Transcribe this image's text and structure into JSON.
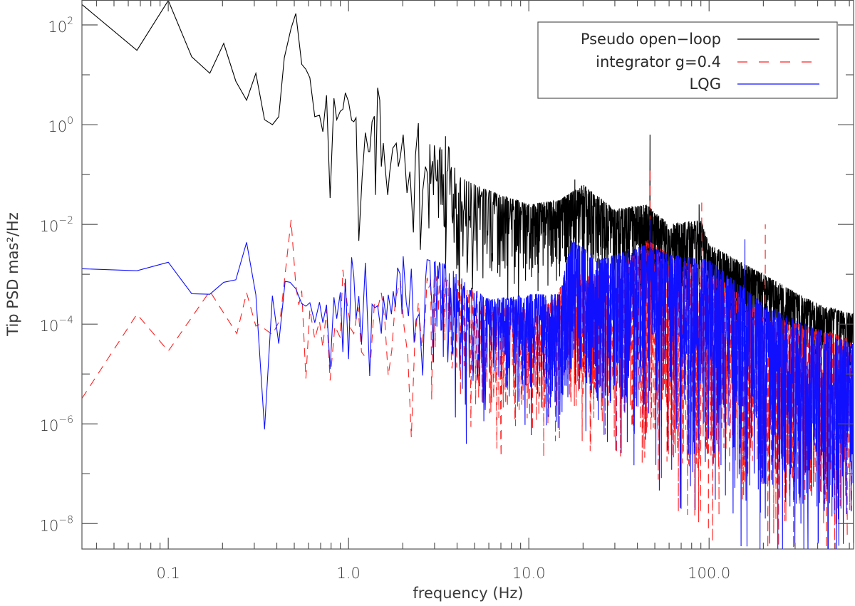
{
  "chart_data": {
    "type": "line",
    "title": "",
    "xlabel": "frequency (Hz)",
    "ylabel": "Tip PSD mas²/Hz",
    "xscale": "log",
    "yscale": "log",
    "xlim": [
      0.0332,
      633
    ],
    "ylim_log10": [
      -8.51,
      2.5
    ],
    "grid": false,
    "x_ticks": [
      {
        "value": 0.1,
        "label": "0.1"
      },
      {
        "value": 1.0,
        "label": "1.0"
      },
      {
        "value": 10.0,
        "label": "10.0"
      },
      {
        "value": 100.0,
        "label": "100.0"
      }
    ],
    "y_ticks": [
      {
        "exp": 2,
        "base": "10",
        "exp_label": "2"
      },
      {
        "exp": 0,
        "base": "10",
        "exp_label": "0"
      },
      {
        "exp": -2,
        "base": "10",
        "exp_label": "−2"
      },
      {
        "exp": -4,
        "base": "10",
        "exp_label": "−4"
      },
      {
        "exp": -6,
        "base": "10",
        "exp_label": "−6"
      },
      {
        "exp": -8,
        "base": "10",
        "exp_label": "−8"
      }
    ],
    "legend": {
      "position": "top-right",
      "entries": [
        {
          "label": "Pseudo open−loop",
          "color": "#000000",
          "style": "solid"
        },
        {
          "label": "integrator g=0.4",
          "color": "#ff2020",
          "style": "dashed"
        },
        {
          "label": "LQG",
          "color": "#1010ff",
          "style": "solid"
        }
      ]
    },
    "series": [
      {
        "name": "Pseudo open-loop",
        "color": "#000000",
        "style": "solid",
        "seed": 11,
        "value_format": "[frequency_Hz, log10_PSD]",
        "points": [
          [
            0.0332,
            2.41
          ],
          [
            0.067,
            1.49
          ],
          [
            0.1,
            2.49
          ],
          [
            0.135,
            1.36
          ],
          [
            0.17,
            1.03
          ],
          [
            0.203,
            1.63
          ],
          [
            0.237,
            0.87
          ],
          [
            0.272,
            0.49
          ],
          [
            0.306,
            1.03
          ],
          [
            0.342,
            0.1
          ],
          [
            0.378,
            0.0
          ],
          [
            0.41,
            0.16
          ],
          [
            0.44,
            1.34
          ],
          [
            0.48,
            1.93
          ],
          [
            0.51,
            2.23
          ],
          [
            0.55,
            1.21
          ],
          [
            0.58,
            1.11
          ],
          [
            0.61,
            0.94
          ],
          [
            0.65,
            0.16
          ],
          [
            0.69,
            0.19
          ],
          [
            0.72,
            -0.14
          ],
          [
            0.755,
            0.59
          ],
          [
            0.79,
            -1.47
          ],
          [
            0.83,
            0.53
          ],
          [
            0.86,
            0.1
          ],
          [
            0.9,
            0.27
          ],
          [
            0.93,
            0.31
          ],
          [
            0.96,
            0.64
          ],
          [
            1.0,
            0.46
          ],
          [
            1.04,
            0.09
          ],
          [
            1.07,
            0.06
          ],
          [
            1.1,
            0.14
          ],
          [
            1.14,
            -2.33
          ],
          [
            1.19,
            -1.04
          ],
          [
            1.24,
            -0.16
          ],
          [
            1.29,
            -0.54
          ],
          [
            1.31,
            -0.54
          ],
          [
            1.35,
            0.06
          ],
          [
            1.39,
            0.17
          ],
          [
            1.41,
            -1.41
          ],
          [
            1.45,
            0.74
          ],
          [
            1.49,
            0.49
          ],
          [
            1.52,
            -0.84
          ],
          [
            1.56,
            -0.37
          ],
          [
            1.6,
            -0.9
          ],
          [
            1.65,
            -1.41
          ],
          [
            1.69,
            -0.97
          ],
          [
            1.76,
            -0.47
          ],
          [
            1.84,
            -0.37
          ],
          [
            1.89,
            -0.84
          ],
          [
            1.94,
            -0.63
          ],
          [
            2.01,
            -0.2
          ],
          [
            2.11,
            -1.37
          ],
          [
            2.19,
            -0.94
          ],
          [
            2.29,
            -2.16
          ],
          [
            2.35,
            -0.61
          ],
          [
            2.44,
            0.03
          ],
          [
            2.5,
            -2.51
          ],
          [
            2.58,
            -1.33
          ],
          [
            2.67,
            -0.84
          ]
        ],
        "envelope_format": "[frequency_Hz, upper_log10, lower_log10]",
        "envelope": [
          [
            2.7,
            -0.4,
            -2.8
          ],
          [
            3.5,
            -0.3,
            -2.8
          ],
          [
            4,
            -1.0,
            -3.2
          ],
          [
            5,
            -1.2,
            -3.0
          ],
          [
            7,
            -1.4,
            -3.0
          ],
          [
            10,
            -1.6,
            -3.0
          ],
          [
            15,
            -1.5,
            -2.8
          ],
          [
            20,
            -1.2,
            -2.7
          ],
          [
            30,
            -1.7,
            -2.9
          ],
          [
            45,
            -1.6,
            -3.2
          ],
          [
            60,
            -2.0,
            -3.6
          ],
          [
            90,
            -1.9,
            -3.6
          ],
          [
            100,
            -2.4,
            -3.8
          ],
          [
            200,
            -3.0,
            -4.3
          ],
          [
            400,
            -3.6,
            -4.6
          ],
          [
            633,
            -3.8,
            -4.7
          ]
        ],
        "spikes": [
          [
            3.45,
            -0.23
          ],
          [
            18,
            -1.1
          ],
          [
            47,
            -0.2
          ],
          [
            88,
            -1.6
          ]
        ]
      },
      {
        "name": "integrator g=0.4",
        "color": "#ff2020",
        "style": "dashed",
        "seed": 29,
        "value_format": "[frequency_Hz, log10_PSD]",
        "points": [
          [
            0.0332,
            -5.49
          ],
          [
            0.067,
            -3.8
          ],
          [
            0.1,
            -4.54
          ],
          [
            0.17,
            -3.34
          ],
          [
            0.24,
            -4.19
          ],
          [
            0.272,
            -3.37
          ],
          [
            0.306,
            -4.04
          ],
          [
            0.318,
            -4.01
          ],
          [
            0.378,
            -4.21
          ],
          [
            0.418,
            -3.9
          ],
          [
            0.48,
            -1.91
          ],
          [
            0.51,
            -3.23
          ],
          [
            0.53,
            -3.61
          ],
          [
            0.55,
            -3.33
          ],
          [
            0.58,
            -5.09
          ],
          [
            0.61,
            -3.7
          ],
          [
            0.65,
            -4.3
          ],
          [
            0.69,
            -3.94
          ],
          [
            0.72,
            -4.47
          ],
          [
            0.755,
            -3.7
          ],
          [
            0.79,
            -5.13
          ],
          [
            0.84,
            -4.04
          ],
          [
            0.9,
            -4.27
          ],
          [
            0.93,
            -2.91
          ],
          [
            0.98,
            -3.56
          ],
          [
            1.03,
            -4.09
          ],
          [
            1.07,
            -4.19
          ],
          [
            1.13,
            -3.66
          ],
          [
            1.18,
            -4.56
          ],
          [
            1.24,
            -4.66
          ],
          [
            1.33,
            -4.66
          ],
          [
            1.39,
            -3.61
          ],
          [
            1.45,
            -3.7
          ],
          [
            1.52,
            -3.37
          ],
          [
            1.59,
            -3.94
          ],
          [
            1.66,
            -5.04
          ],
          [
            1.74,
            -4.51
          ],
          [
            1.82,
            -3.49
          ],
          [
            1.94,
            -3.13
          ],
          [
            2.03,
            -4.04
          ],
          [
            2.13,
            -4.61
          ],
          [
            2.23,
            -6.27
          ],
          [
            2.33,
            -4.37
          ],
          [
            2.44,
            -3.56
          ],
          [
            2.55,
            -4.47
          ],
          [
            2.67,
            -3.8
          ]
        ],
        "envelope_format": "[frequency_Hz, upper_log10, lower_log10]",
        "envelope": [
          [
            2.7,
            -3.0,
            -5.0
          ],
          [
            4,
            -3.1,
            -5.4
          ],
          [
            7,
            -3.6,
            -6.0
          ],
          [
            12,
            -3.7,
            -6.0
          ],
          [
            17,
            -3.0,
            -5.6
          ],
          [
            30,
            -3.0,
            -5.8
          ],
          [
            45,
            -2.3,
            -6.5
          ],
          [
            60,
            -2.6,
            -6.8
          ],
          [
            100,
            -2.9,
            -7.0
          ],
          [
            200,
            -3.8,
            -7.4
          ],
          [
            633,
            -4.3,
            -7.8
          ]
        ],
        "spikes": [
          [
            47,
            -0.87
          ],
          [
            91,
            -1.5
          ],
          [
            205,
            -2.0
          ]
        ]
      },
      {
        "name": "LQG",
        "color": "#1010ff",
        "style": "solid",
        "seed": 53,
        "value_format": "[frequency_Hz, log10_PSD]",
        "points": [
          [
            0.0332,
            -2.89
          ],
          [
            0.067,
            -2.93
          ],
          [
            0.1,
            -2.76
          ],
          [
            0.135,
            -3.39
          ],
          [
            0.17,
            -3.4
          ],
          [
            0.203,
            -3.16
          ],
          [
            0.237,
            -3.11
          ],
          [
            0.272,
            -2.36
          ],
          [
            0.306,
            -3.41
          ],
          [
            0.342,
            -6.11
          ],
          [
            0.378,
            -3.43
          ],
          [
            0.41,
            -4.39
          ],
          [
            0.445,
            -3.14
          ],
          [
            0.474,
            -3.16
          ],
          [
            0.51,
            -3.29
          ],
          [
            0.55,
            -3.59
          ],
          [
            0.58,
            -3.64
          ],
          [
            0.61,
            -3.57
          ],
          [
            0.65,
            -3.97
          ],
          [
            0.69,
            -3.56
          ],
          [
            0.72,
            -3.97
          ],
          [
            0.755,
            -3.61
          ],
          [
            0.79,
            -4.9
          ],
          [
            0.83,
            -3.46
          ],
          [
            0.86,
            -3.89
          ],
          [
            0.9,
            -3.36
          ],
          [
            0.93,
            -4.56
          ],
          [
            0.96,
            -3.09
          ],
          [
            1.0,
            -4.7
          ],
          [
            1.04,
            -2.66
          ],
          [
            1.07,
            -3.04
          ],
          [
            1.1,
            -3.9
          ],
          [
            1.14,
            -3.44
          ],
          [
            1.18,
            -4.41
          ],
          [
            1.24,
            -2.77
          ],
          [
            1.31,
            -5.04
          ],
          [
            1.35,
            -3.6
          ],
          [
            1.4,
            -3.67
          ],
          [
            1.45,
            -3.63
          ],
          [
            1.52,
            -4.19
          ],
          [
            1.56,
            -3.44
          ],
          [
            1.62,
            -3.91
          ],
          [
            1.66,
            -3.41
          ],
          [
            1.73,
            -3.8
          ],
          [
            1.77,
            -3.34
          ],
          [
            1.82,
            -3.66
          ],
          [
            1.87,
            -2.87
          ],
          [
            1.93,
            -2.99
          ],
          [
            1.98,
            -3.8
          ],
          [
            2.01,
            -2.64
          ],
          [
            2.09,
            -3.56
          ],
          [
            2.15,
            -3.84
          ],
          [
            2.23,
            -2.89
          ],
          [
            2.31,
            -4.37
          ],
          [
            2.37,
            -3.91
          ],
          [
            2.46,
            -3.8
          ],
          [
            2.58,
            -5.03
          ],
          [
            2.67,
            -3.13
          ]
        ],
        "envelope_format": "[frequency_Hz, upper_log10, lower_log10]",
        "envelope": [
          [
            2.7,
            -2.7,
            -4.8
          ],
          [
            3.7,
            -2.8,
            -5.0
          ],
          [
            4.5,
            -3.2,
            -6.0
          ],
          [
            6,
            -3.5,
            -5.5
          ],
          [
            10,
            -3.4,
            -5.6
          ],
          [
            15,
            -3.4,
            -5.6
          ],
          [
            17,
            -2.3,
            -5.0
          ],
          [
            25,
            -2.7,
            -5.6
          ],
          [
            45,
            -2.4,
            -5.8
          ],
          [
            60,
            -2.6,
            -6.4
          ],
          [
            100,
            -2.7,
            -6.8
          ],
          [
            200,
            -3.6,
            -7.4
          ],
          [
            400,
            -4.1,
            -7.8
          ],
          [
            633,
            -4.4,
            -8.0
          ]
        ],
        "spikes": [
          [
            4.5,
            -6.4
          ],
          [
            47,
            -1.9
          ],
          [
            158,
            -2.3
          ]
        ]
      }
    ]
  }
}
